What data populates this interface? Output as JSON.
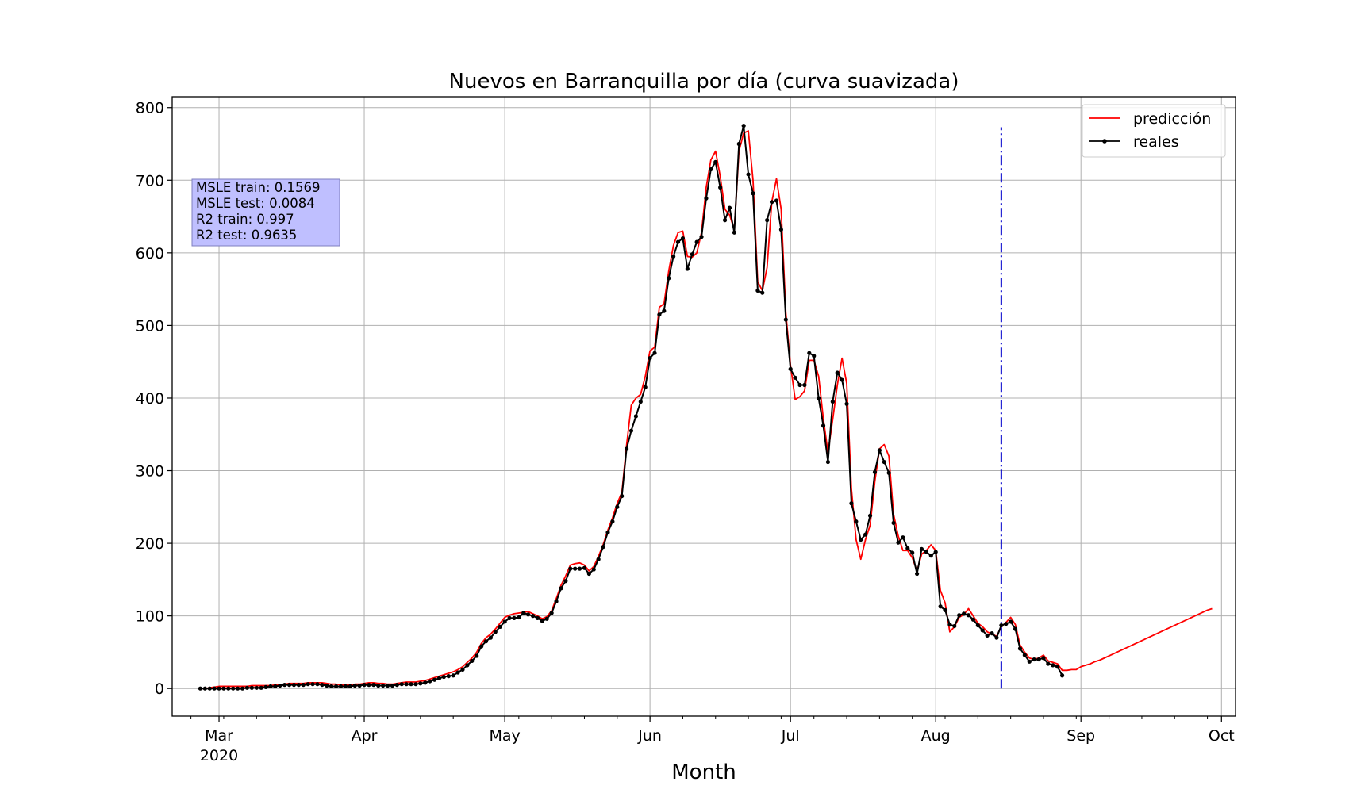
{
  "chart_data": {
    "type": "line",
    "title": "Nuevos en Barranquilla por día (curva suavizada)",
    "xlabel": "Month",
    "ylabel": "",
    "x_axis": {
      "type": "date",
      "range": [
        "2020-02-20",
        "2020-10-04"
      ],
      "tick_labels": [
        {
          "date": "2020-03-01",
          "label": "Mar",
          "year": "2020"
        },
        {
          "date": "2020-04-01",
          "label": "Apr"
        },
        {
          "date": "2020-05-01",
          "label": "May"
        },
        {
          "date": "2020-06-01",
          "label": "Jun"
        },
        {
          "date": "2020-07-01",
          "label": "Jul"
        },
        {
          "date": "2020-08-01",
          "label": "Aug"
        },
        {
          "date": "2020-09-01",
          "label": "Sep"
        },
        {
          "date": "2020-10-01",
          "label": "Oct"
        }
      ]
    },
    "y_axis": {
      "range": [
        -38,
        815
      ],
      "ticks": [
        0,
        100,
        200,
        300,
        400,
        500,
        600,
        700,
        800
      ]
    },
    "grid": true,
    "legend": {
      "placement": "top-right",
      "entries": [
        {
          "label": "predicción",
          "color": "#ff0000",
          "marker": false
        },
        {
          "label": "reales",
          "color": "#000000",
          "marker": true
        }
      ]
    },
    "metrics_box": {
      "lines": [
        "MSLE train: 0.1569",
        "MSLE test: 0.0084",
        "R2 train: 0.997",
        "R2 test: 0.9635"
      ],
      "color": "#bfbfff"
    },
    "split_line": {
      "date": "2020-08-15",
      "color": "#0000cc",
      "style": "dash-dot"
    },
    "series": [
      {
        "name": "reales",
        "color": "#000000",
        "start_date": "2020-02-26",
        "values": [
          0,
          0,
          0,
          0,
          0,
          0,
          0,
          0,
          0,
          0,
          1,
          1,
          1,
          1,
          2,
          3,
          3,
          4,
          5,
          5,
          5,
          5,
          5,
          6,
          6,
          6,
          5,
          4,
          3,
          3,
          3,
          3,
          3,
          4,
          4,
          5,
          5,
          5,
          4,
          4,
          4,
          4,
          5,
          6,
          6,
          6,
          6,
          7,
          8,
          10,
          12,
          14,
          16,
          17,
          18,
          22,
          26,
          32,
          38,
          45,
          58,
          65,
          70,
          78,
          85,
          92,
          97,
          97,
          98,
          104,
          102,
          100,
          97,
          93,
          96,
          104,
          120,
          138,
          148,
          165,
          165,
          165,
          166,
          158,
          164,
          178,
          195,
          215,
          230,
          250,
          265,
          330,
          355,
          375,
          395,
          415,
          455,
          462,
          515,
          520,
          565,
          595,
          615,
          620,
          578,
          598,
          615,
          622,
          675,
          715,
          725,
          690,
          645,
          662,
          628,
          750,
          775,
          708,
          682,
          548,
          545,
          645,
          670,
          672,
          632,
          508,
          440,
          428,
          418,
          418,
          462,
          458,
          400,
          362,
          312,
          395,
          435,
          425,
          392,
          255,
          230,
          205,
          212,
          238,
          298,
          328,
          312,
          297,
          228,
          201,
          208,
          193,
          187,
          158,
          192,
          188,
          183,
          188,
          113,
          108,
          88,
          86,
          101,
          103,
          101,
          95,
          87,
          80,
          73,
          76,
          70,
          87,
          89,
          92,
          82,
          55,
          46,
          37,
          40,
          40,
          42,
          34,
          32,
          30,
          18
        ]
      },
      {
        "name": "predicción",
        "color": "#ff0000",
        "start_date": "2020-02-26",
        "values": [
          0,
          0,
          1,
          2,
          3,
          3,
          3,
          3,
          3,
          3,
          3,
          4,
          4,
          4,
          4,
          4,
          5,
          5,
          6,
          7,
          7,
          7,
          7,
          8,
          8,
          8,
          8,
          7,
          6,
          6,
          5,
          5,
          5,
          6,
          6,
          7,
          8,
          8,
          7,
          7,
          6,
          6,
          7,
          8,
          9,
          9,
          9,
          10,
          11,
          13,
          15,
          17,
          19,
          21,
          23,
          26,
          30,
          36,
          42,
          50,
          62,
          70,
          75,
          82,
          90,
          98,
          101,
          103,
          104,
          105,
          106,
          103,
          100,
          96,
          99,
          107,
          124,
          142,
          155,
          170,
          172,
          173,
          170,
          162,
          168,
          182,
          198,
          218,
          235,
          255,
          270,
          335,
          390,
          400,
          405,
          430,
          465,
          470,
          525,
          530,
          575,
          610,
          628,
          630,
          595,
          594,
          600,
          628,
          690,
          728,
          740,
          705,
          660,
          652,
          632,
          740,
          765,
          768,
          700,
          560,
          548,
          580,
          670,
          702,
          660,
          518,
          445,
          398,
          402,
          410,
          452,
          452,
          430,
          372,
          325,
          370,
          418,
          455,
          420,
          275,
          205,
          178,
          205,
          225,
          285,
          330,
          336,
          320,
          240,
          210,
          190,
          190,
          180,
          162,
          185,
          190,
          198,
          190,
          135,
          118,
          78,
          85,
          98,
          102,
          110,
          100,
          90,
          85,
          78,
          75,
          72,
          85,
          91,
          98,
          88,
          60,
          50,
          42,
          40,
          42,
          46,
          38,
          36,
          34,
          25,
          25,
          26,
          26,
          30,
          32,
          34,
          37,
          39,
          42,
          45,
          48,
          51,
          54,
          57,
          60,
          63,
          66,
          69,
          72,
          75,
          78,
          81,
          84,
          87,
          90,
          93,
          96,
          99,
          102,
          105,
          108,
          110
        ]
      }
    ]
  }
}
